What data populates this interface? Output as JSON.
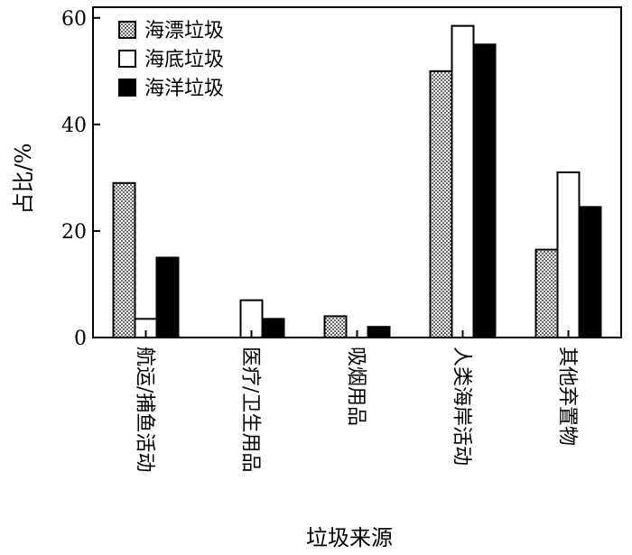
{
  "chart_data": {
    "type": "bar",
    "xlabel": "垃圾来源",
    "ylabel": "占比/%",
    "ylim": [
      0,
      62
    ],
    "yticks": [
      0,
      20,
      40,
      60
    ],
    "grid": false,
    "legend_position": "top-left",
    "categories": [
      "航运/捕鱼活动",
      "医疗/卫生用品",
      "吸烟用品",
      "人类海岸活动",
      "其他弃置物"
    ],
    "series": [
      {
        "name": "海漂垃圾",
        "fill": "dotted",
        "values": [
          29,
          0,
          4,
          50,
          16.5
        ]
      },
      {
        "name": "海底垃圾",
        "fill": "white",
        "values": [
          3.5,
          7,
          0,
          58.5,
          31
        ]
      },
      {
        "name": "海洋垃圾",
        "fill": "black",
        "values": [
          15,
          3.5,
          2,
          55,
          24.5
        ]
      }
    ]
  }
}
